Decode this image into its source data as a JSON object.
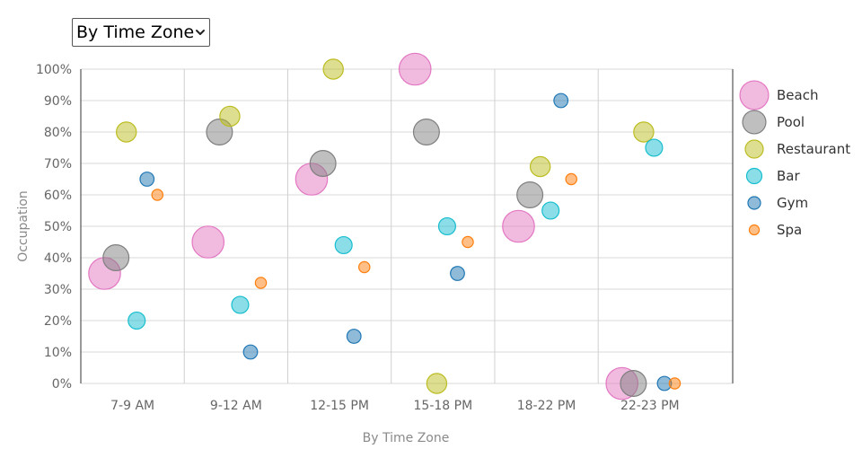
{
  "controls": {
    "group_select_value": "By Time Zone"
  },
  "chart_data": {
    "type": "bubble",
    "xlabel": "By Time Zone",
    "ylabel": "Occupation",
    "categories": [
      "7-9 AM",
      "9-12 AM",
      "12-15 PM",
      "15-18 PM",
      "18-22 PM",
      "22-23 PM"
    ],
    "ylim": [
      0,
      100
    ],
    "yticks": [
      "0%",
      "10%",
      "20%",
      "30%",
      "40%",
      "50%",
      "60%",
      "70%",
      "80%",
      "90%",
      "100%"
    ],
    "grid": true,
    "legend_position": "right",
    "series": [
      {
        "name": "Beach",
        "color": "#e377c2",
        "size": 40,
        "points": [
          {
            "category": "7-9 AM",
            "value": 35
          },
          {
            "category": "9-12 AM",
            "value": 45
          },
          {
            "category": "12-15 PM",
            "value": 65
          },
          {
            "category": "15-18 PM",
            "value": 100
          },
          {
            "category": "18-22 PM",
            "value": 50
          },
          {
            "category": "22-23 PM",
            "value": 0
          }
        ]
      },
      {
        "name": "Pool",
        "color": "#7f7f7f",
        "size": 30,
        "points": [
          {
            "category": "7-9 AM",
            "value": 40
          },
          {
            "category": "9-12 AM",
            "value": 80
          },
          {
            "category": "12-15 PM",
            "value": 70
          },
          {
            "category": "15-18 PM",
            "value": 80
          },
          {
            "category": "18-22 PM",
            "value": 60
          },
          {
            "category": "22-23 PM",
            "value": 0
          }
        ]
      },
      {
        "name": "Restaurant",
        "color": "#bcbd22",
        "size": 20,
        "points": [
          {
            "category": "7-9 AM",
            "value": 80
          },
          {
            "category": "9-12 AM",
            "value": 85
          },
          {
            "category": "12-15 PM",
            "value": 100
          },
          {
            "category": "15-18 PM",
            "value": 0
          },
          {
            "category": "18-22 PM",
            "value": 69
          },
          {
            "category": "22-23 PM",
            "value": 80
          }
        ]
      },
      {
        "name": "Bar",
        "color": "#17becf",
        "size": 15,
        "points": [
          {
            "category": "7-9 AM",
            "value": 20
          },
          {
            "category": "9-12 AM",
            "value": 25
          },
          {
            "category": "12-15 PM",
            "value": 44
          },
          {
            "category": "15-18 PM",
            "value": 50
          },
          {
            "category": "18-22 PM",
            "value": 55
          },
          {
            "category": "22-23 PM",
            "value": 75
          }
        ]
      },
      {
        "name": "Gym",
        "color": "#1f77b4",
        "size": 10,
        "points": [
          {
            "category": "7-9 AM",
            "value": 65
          },
          {
            "category": "9-12 AM",
            "value": 10
          },
          {
            "category": "12-15 PM",
            "value": 15
          },
          {
            "category": "15-18 PM",
            "value": 35
          },
          {
            "category": "18-22 PM",
            "value": 90
          },
          {
            "category": "22-23 PM",
            "value": 0
          }
        ]
      },
      {
        "name": "Spa",
        "color": "#ff7f0e",
        "size": 5,
        "points": [
          {
            "category": "7-9 AM",
            "value": 60
          },
          {
            "category": "9-12 AM",
            "value": 32
          },
          {
            "category": "12-15 PM",
            "value": 37
          },
          {
            "category": "15-18 PM",
            "value": 45
          },
          {
            "category": "18-22 PM",
            "value": 65
          },
          {
            "category": "22-23 PM",
            "value": 0
          }
        ]
      }
    ]
  }
}
